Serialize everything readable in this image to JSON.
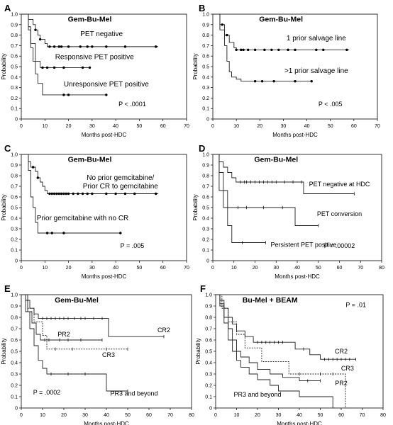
{
  "figure": {
    "panels": [
      "A",
      "B",
      "C",
      "D",
      "E",
      "F"
    ]
  },
  "chart_data": [
    {
      "panel": "A",
      "type": "line",
      "title": "Gem-Bu-Mel",
      "xlabel": "Months post-HDC",
      "ylabel": "Probability",
      "xlim": [
        0,
        70
      ],
      "ylim": [
        0,
        1
      ],
      "xticks": [
        0,
        10,
        20,
        30,
        40,
        50,
        60,
        70
      ],
      "yticks": [
        0,
        0.1,
        0.2,
        0.3,
        0.4,
        0.5,
        0.6,
        0.7,
        0.8,
        0.9,
        1.0
      ],
      "annotation": "P < .0001",
      "series": [
        {
          "name": "PET negative",
          "style": "solid",
          "steps": [
            [
              0,
              1
            ],
            [
              3,
              0.95
            ],
            [
              5,
              0.9
            ],
            [
              6,
              0.85
            ],
            [
              7,
              0.8
            ],
            [
              8,
              0.76
            ],
            [
              10,
              0.72
            ],
            [
              11,
              0.69
            ],
            [
              58,
              0.69
            ]
          ],
          "censors": [
            6,
            8,
            12,
            14,
            16,
            17,
            20,
            25,
            28,
            30,
            36,
            44,
            57
          ]
        },
        {
          "name": "Responsive PET positive",
          "style": "solid",
          "steps": [
            [
              0,
              1
            ],
            [
              3,
              0.85
            ],
            [
              4,
              0.72
            ],
            [
              6,
              0.55
            ],
            [
              8,
              0.49
            ],
            [
              29,
              0.49
            ]
          ],
          "censors": [
            9,
            11,
            14,
            18,
            26,
            29
          ]
        },
        {
          "name": "Unresponsive PET positive",
          "style": "solid",
          "steps": [
            [
              0,
              1
            ],
            [
              3,
              0.88
            ],
            [
              4,
              0.68
            ],
            [
              5,
              0.55
            ],
            [
              6,
              0.43
            ],
            [
              7,
              0.34
            ],
            [
              9,
              0.23
            ],
            [
              36,
              0.23
            ]
          ],
          "censors": [
            18,
            20,
            36
          ]
        }
      ],
      "labels": [
        "PET negative",
        "Responsive PET positive",
        "Unresponsive PET positive"
      ]
    },
    {
      "panel": "B",
      "type": "line",
      "title": "Gem-Bu-Mel",
      "xlabel": "Months post-HDC",
      "ylabel": "Probability",
      "xlim": [
        0,
        70
      ],
      "ylim": [
        0,
        1
      ],
      "xticks": [
        0,
        10,
        20,
        30,
        40,
        50,
        60,
        70
      ],
      "yticks": [
        0,
        0.1,
        0.2,
        0.3,
        0.4,
        0.5,
        0.6,
        0.7,
        0.8,
        0.9,
        1.0
      ],
      "annotation": "P < .005",
      "series": [
        {
          "name": "1 prior salvage line",
          "style": "solid",
          "steps": [
            [
              0,
              1
            ],
            [
              3,
              0.9
            ],
            [
              5,
              0.8
            ],
            [
              7,
              0.73
            ],
            [
              9,
              0.68
            ],
            [
              10,
              0.66
            ],
            [
              58,
              0.66
            ]
          ],
          "censors": [
            4,
            6,
            10,
            12,
            13,
            15,
            18,
            22,
            25,
            28,
            32,
            35,
            44,
            47,
            57
          ]
        },
        {
          "name": ">1 prior salvage line",
          "style": "solid",
          "steps": [
            [
              0,
              1
            ],
            [
              3,
              0.85
            ],
            [
              5,
              0.7
            ],
            [
              6,
              0.55
            ],
            [
              7,
              0.45
            ],
            [
              8,
              0.4
            ],
            [
              10,
              0.38
            ],
            [
              12,
              0.36
            ],
            [
              42,
              0.36
            ]
          ],
          "censors": [
            18,
            21,
            26,
            35,
            42
          ]
        }
      ],
      "labels": [
        "1 prior salvage line",
        ">1 prior salvage line"
      ]
    },
    {
      "panel": "C",
      "type": "line",
      "title": "Gem-Bu-Mel",
      "xlabel": "Months post-HDC",
      "ylabel": "Probability",
      "xlim": [
        0,
        70
      ],
      "ylim": [
        0,
        1
      ],
      "xticks": [
        0,
        10,
        20,
        30,
        40,
        50,
        60,
        70
      ],
      "yticks": [
        0,
        0.1,
        0.2,
        0.3,
        0.4,
        0.5,
        0.6,
        0.7,
        0.8,
        0.9,
        1.0
      ],
      "annotation": "P = .005",
      "series": [
        {
          "name": "No prior gemcitabine/ Prior CR to gemcitabine",
          "style": "solid",
          "steps": [
            [
              0,
              1
            ],
            [
              3,
              0.93
            ],
            [
              4,
              0.88
            ],
            [
              6,
              0.84
            ],
            [
              7,
              0.78
            ],
            [
              8,
              0.74
            ],
            [
              9,
              0.7
            ],
            [
              10,
              0.66
            ],
            [
              11,
              0.63
            ],
            [
              58,
              0.63
            ]
          ],
          "censors": [
            5,
            7,
            12,
            13,
            14,
            15,
            16,
            17,
            18,
            19,
            20,
            22,
            24,
            26,
            28,
            30,
            36,
            40,
            44,
            48,
            57
          ]
        },
        {
          "name": "Prior gemcitabine with no CR",
          "style": "solid",
          "steps": [
            [
              0,
              1
            ],
            [
              3,
              0.85
            ],
            [
              4,
              0.6
            ],
            [
              5,
              0.5
            ],
            [
              6,
              0.36
            ],
            [
              7,
              0.26
            ],
            [
              42,
              0.26
            ]
          ],
          "censors": [
            11,
            13,
            18,
            42
          ]
        }
      ],
      "labels": [
        "No prior gemcitabine/",
        "Prior CR to gemcitabine",
        "Prior gemcitabine with no CR"
      ]
    },
    {
      "panel": "D",
      "type": "line",
      "title": "Gem-Bu-Mel",
      "xlabel": "Months post-HDC",
      "ylabel": "Probability",
      "xlim": [
        0,
        80
      ],
      "ylim": [
        0,
        1
      ],
      "xticks": [
        0,
        10,
        20,
        30,
        40,
        50,
        60,
        70,
        80
      ],
      "yticks": [
        0,
        0.1,
        0.2,
        0.3,
        0.4,
        0.5,
        0.6,
        0.7,
        0.8,
        0.9,
        1.0
      ],
      "annotation": "P = .00002",
      "series": [
        {
          "name": "PET negative at HDC",
          "style": "solid",
          "steps": [
            [
              0,
              1
            ],
            [
              3,
              0.93
            ],
            [
              5,
              0.88
            ],
            [
              7,
              0.83
            ],
            [
              9,
              0.78
            ],
            [
              11,
              0.74
            ],
            [
              43,
              0.74
            ],
            [
              43,
              0.63
            ],
            [
              67,
              0.63
            ]
          ],
          "censors": [
            13,
            15,
            16,
            18,
            20,
            22,
            24,
            26,
            28,
            30,
            34,
            38,
            42,
            67
          ]
        },
        {
          "name": "PET conversion",
          "style": "solid",
          "steps": [
            [
              0,
              1
            ],
            [
              3,
              0.83
            ],
            [
              5,
              0.66
            ],
            [
              7,
              0.5
            ],
            [
              39,
              0.5
            ],
            [
              39,
              0.33
            ],
            [
              50,
              0.33
            ]
          ],
          "censors": [
            12,
            16,
            24,
            33,
            50
          ]
        },
        {
          "name": "Persistent PET positive",
          "style": "solid",
          "steps": [
            [
              0,
              1
            ],
            [
              3,
              0.66
            ],
            [
              5,
              0.5
            ],
            [
              7,
              0.33
            ],
            [
              9,
              0.17
            ],
            [
              25,
              0.17
            ]
          ],
          "censors": [
            14,
            25
          ]
        }
      ],
      "labels": [
        "PET negative at HDC",
        "PET conversion",
        "Persistent PET positive"
      ]
    },
    {
      "panel": "E",
      "type": "line",
      "title": "Gem-Bu-Mel",
      "xlabel": "Months post-HDC",
      "ylabel": "Probability",
      "xlim": [
        0,
        80
      ],
      "ylim": [
        0,
        1
      ],
      "xticks": [
        0,
        10,
        20,
        30,
        40,
        50,
        60,
        70,
        80
      ],
      "yticks": [
        0,
        0.1,
        0.2,
        0.3,
        0.4,
        0.5,
        0.6,
        0.7,
        0.8,
        0.9,
        1.0
      ],
      "annotation": "P = .0002",
      "series": [
        {
          "name": "CR2",
          "style": "solid",
          "steps": [
            [
              0,
              1
            ],
            [
              2,
              0.95
            ],
            [
              4,
              0.88
            ],
            [
              6,
              0.83
            ],
            [
              8,
              0.79
            ],
            [
              41,
              0.79
            ],
            [
              41,
              0.63
            ],
            [
              67,
              0.63
            ]
          ],
          "censors": [
            10,
            12,
            14,
            16,
            18,
            20,
            22,
            25,
            28,
            30,
            34,
            38,
            67
          ]
        },
        {
          "name": "PR2",
          "style": "solid",
          "steps": [
            [
              0,
              1
            ],
            [
              3,
              0.85
            ],
            [
              5,
              0.75
            ],
            [
              7,
              0.65
            ],
            [
              9,
              0.6
            ],
            [
              38,
              0.6
            ]
          ],
          "censors": [
            11,
            13,
            18,
            22,
            28,
            38
          ]
        },
        {
          "name": "CR3",
          "style": "dotted",
          "steps": [
            [
              0,
              1
            ],
            [
              3,
              0.88
            ],
            [
              6,
              0.76
            ],
            [
              10,
              0.64
            ],
            [
              12,
              0.52
            ],
            [
              50,
              0.52
            ]
          ],
          "censors": [
            16,
            24,
            40,
            50
          ]
        },
        {
          "name": "PR3 and beyond",
          "style": "solid",
          "steps": [
            [
              0,
              1
            ],
            [
              2,
              0.85
            ],
            [
              4,
              0.7
            ],
            [
              6,
              0.55
            ],
            [
              8,
              0.42
            ],
            [
              10,
              0.35
            ],
            [
              12,
              0.3
            ],
            [
              40,
              0.3
            ],
            [
              40,
              0.15
            ],
            [
              50,
              0.15
            ]
          ],
          "censors": [
            14,
            22,
            30,
            50
          ]
        }
      ],
      "labels": [
        "CR2",
        "PR2",
        "CR3",
        "PR3 and beyond"
      ]
    },
    {
      "panel": "F",
      "type": "line",
      "title": "Bu-Mel + BEAM",
      "xlabel": "Months post-HDC",
      "ylabel": "Probability",
      "xlim": [
        0,
        80
      ],
      "ylim": [
        0,
        1
      ],
      "xticks": [
        0,
        10,
        20,
        30,
        40,
        50,
        60,
        70,
        80
      ],
      "yticks": [
        0,
        0.1,
        0.2,
        0.3,
        0.4,
        0.5,
        0.6,
        0.7,
        0.8,
        0.9,
        1.0
      ],
      "annotation": "P = .01",
      "series": [
        {
          "name": "CR2",
          "style": "solid",
          "steps": [
            [
              0,
              1
            ],
            [
              2,
              0.95
            ],
            [
              4,
              0.88
            ],
            [
              6,
              0.8
            ],
            [
              8,
              0.74
            ],
            [
              10,
              0.68
            ],
            [
              14,
              0.63
            ],
            [
              18,
              0.58
            ],
            [
              35,
              0.58
            ],
            [
              38,
              0.52
            ],
            [
              45,
              0.47
            ],
            [
              50,
              0.43
            ],
            [
              67,
              0.43
            ]
          ],
          "censors": [
            20,
            22,
            24,
            26,
            28,
            30,
            32,
            42,
            52,
            54,
            56,
            58,
            60,
            62,
            64,
            67
          ]
        },
        {
          "name": "CR3",
          "style": "dotted",
          "steps": [
            [
              0,
              1
            ],
            [
              3,
              0.88
            ],
            [
              6,
              0.76
            ],
            [
              10,
              0.65
            ],
            [
              14,
              0.53
            ],
            [
              22,
              0.41
            ],
            [
              35,
              0.3
            ],
            [
              62,
              0.3
            ],
            [
              62,
              0
            ],
            [
              63,
              0
            ]
          ],
          "censors": [
            40,
            50,
            56
          ]
        },
        {
          "name": "PR2",
          "style": "solid",
          "steps": [
            [
              0,
              1
            ],
            [
              2,
              0.92
            ],
            [
              4,
              0.8
            ],
            [
              6,
              0.7
            ],
            [
              8,
              0.6
            ],
            [
              10,
              0.5
            ],
            [
              12,
              0.45
            ],
            [
              16,
              0.4
            ],
            [
              20,
              0.34
            ],
            [
              26,
              0.3
            ],
            [
              32,
              0.27
            ],
            [
              40,
              0.24
            ],
            [
              50,
              0.24
            ]
          ],
          "censors": [
            44,
            50
          ]
        },
        {
          "name": "PR3 and beyond",
          "style": "solid",
          "steps": [
            [
              0,
              1
            ],
            [
              2,
              0.9
            ],
            [
              4,
              0.75
            ],
            [
              6,
              0.6
            ],
            [
              8,
              0.5
            ],
            [
              10,
              0.42
            ],
            [
              12,
              0.36
            ],
            [
              16,
              0.3
            ],
            [
              20,
              0.25
            ],
            [
              26,
              0.2
            ],
            [
              30,
              0.15
            ],
            [
              40,
              0.1
            ],
            [
              56,
              0.1
            ],
            [
              56,
              0
            ],
            [
              57,
              0
            ]
          ],
          "censors": []
        }
      ],
      "labels": [
        "CR2",
        "CR3",
        "PR2",
        "PR3 and beyond"
      ]
    }
  ]
}
